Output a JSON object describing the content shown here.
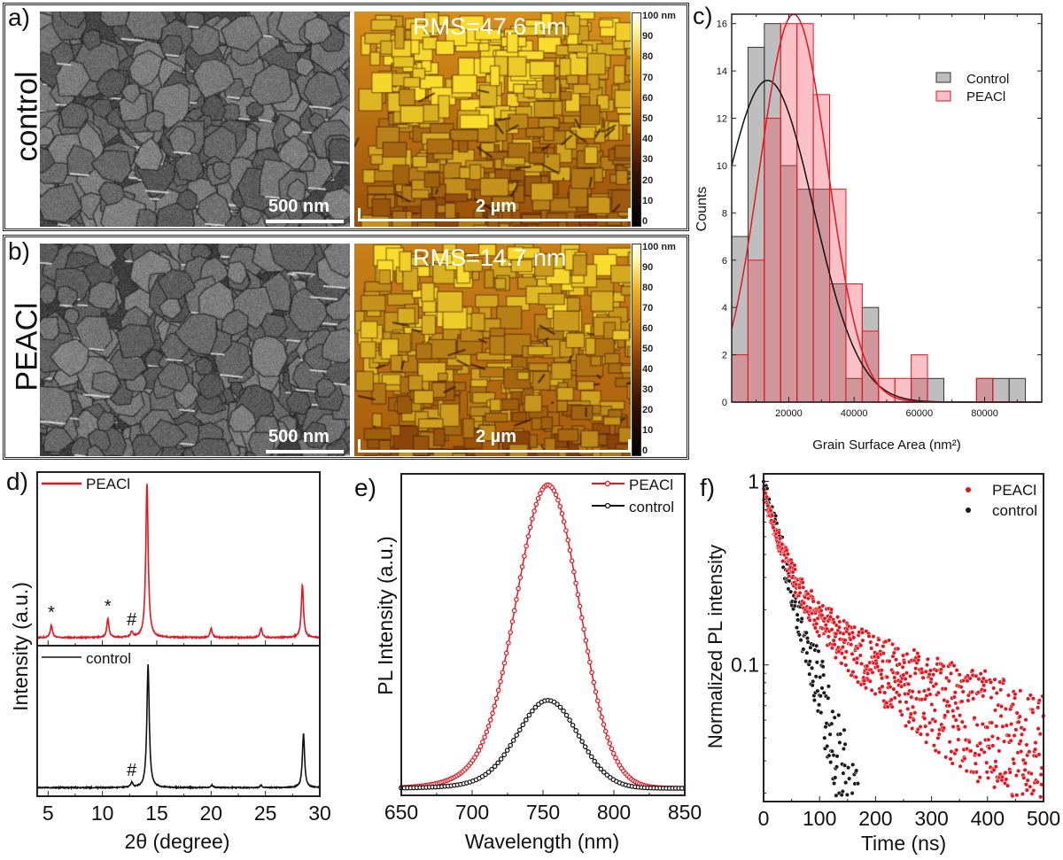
{
  "panel_a": {
    "label": "a)",
    "sample": "control",
    "sem_scalebar": "500 nm",
    "afm_rms": "RMS=47.6 nm",
    "afm_scalebar": "2 µm"
  },
  "panel_b": {
    "label": "b)",
    "sample": "PEACl",
    "sem_scalebar": "500 nm",
    "afm_rms": "RMS=14.7 nm",
    "afm_scalebar": "2 µm"
  },
  "colorbar": {
    "labels": [
      "100 nm",
      "90",
      "80",
      "70",
      "60",
      "50",
      "40",
      "30",
      "20",
      "10",
      "0"
    ]
  },
  "colors": {
    "peacl": "#e8141e",
    "control": "#111111",
    "control_hist": "#808080",
    "peacl_hist": "#f07880"
  },
  "chart_data": [
    {
      "panel": "c)",
      "type": "bar",
      "xlabel": "Grain Surface Area (nm²)",
      "ylabel": "Counts",
      "xlim": [
        2500,
        97500
      ],
      "ylim": [
        0,
        16.4
      ],
      "xticks": [
        "20000",
        "40000",
        "60000",
        "80000"
      ],
      "yticks": [
        "0",
        "2",
        "4",
        "6",
        "8",
        "10",
        "12",
        "14",
        "16"
      ],
      "bin_width": 5000,
      "bin_centers": [
        5000,
        10000,
        15000,
        20000,
        25000,
        30000,
        35000,
        40000,
        45000,
        50000,
        55000,
        60000,
        65000,
        70000,
        75000,
        80000,
        85000,
        90000
      ],
      "legend": "top-right",
      "series": [
        {
          "name": "Control",
          "values": [
            7,
            15,
            16,
            10,
            9,
            9,
            5,
            1,
            4,
            0,
            0,
            1,
            1,
            0,
            0,
            1,
            1,
            1
          ],
          "fit": {
            "type": "gaussian",
            "center": 13500,
            "sigma": 14000,
            "peak": 13.6
          }
        },
        {
          "name": "PEACl",
          "values": [
            2,
            6,
            12,
            16,
            16,
            13,
            9,
            5,
            3,
            1,
            1,
            2,
            0,
            0,
            0,
            1,
            0,
            0
          ],
          "fit": {
            "type": "gaussian",
            "center": 21500,
            "sigma": 10400,
            "peak": 16.4
          }
        }
      ]
    },
    {
      "panel": "d)",
      "type": "line",
      "xlabel": "2θ (degree)",
      "ylabel": "Intensity (a.u.)",
      "xlim": [
        4,
        30
      ],
      "xticks": [
        "5",
        "10",
        "15",
        "20",
        "25",
        "30"
      ],
      "stacked": true,
      "series": [
        {
          "name": "PEACl",
          "peaks": [
            {
              "x": 5.3,
              "h": 0.08,
              "mark": "*"
            },
            {
              "x": 10.5,
              "h": 0.12,
              "mark": "*"
            },
            {
              "x": 12.7,
              "h": 0.035,
              "mark": "#"
            },
            {
              "x": 14.1,
              "h": 1.0
            },
            {
              "x": 20.0,
              "h": 0.06
            },
            {
              "x": 24.6,
              "h": 0.06
            },
            {
              "x": 28.4,
              "h": 0.34
            }
          ]
        },
        {
          "name": "control",
          "peaks": [
            {
              "x": 12.7,
              "h": 0.04,
              "mark": "#"
            },
            {
              "x": 14.2,
              "h": 1.0
            },
            {
              "x": 20.1,
              "h": 0.02
            },
            {
              "x": 24.6,
              "h": 0.02
            },
            {
              "x": 28.5,
              "h": 0.44
            }
          ]
        }
      ]
    },
    {
      "panel": "e)",
      "type": "line",
      "xlabel": "Wavelength (nm)",
      "ylabel": "PL Intensity (a.u.)",
      "xlim": [
        650,
        850
      ],
      "ylim": [
        0,
        1.1
      ],
      "xticks": [
        "650",
        "700",
        "750",
        "800",
        "850"
      ],
      "legend": "top-right",
      "series": [
        {
          "name": "PEACl",
          "peak_nm": 754,
          "fwhm_nm": 52,
          "amplitude": 1.0
        },
        {
          "name": "control",
          "peak_nm": 754,
          "fwhm_nm": 50,
          "amplitude": 0.29
        }
      ]
    },
    {
      "panel": "f)",
      "type": "scatter",
      "xlabel": "Time (ns)",
      "ylabel": "Normalized PL intensity",
      "xlim": [
        0,
        500
      ],
      "ylim": [
        0.018,
        1.1
      ],
      "yscale": "log",
      "xticks": [
        "0",
        "100",
        "200",
        "300",
        "400",
        "500"
      ],
      "yticks": [
        "1",
        "0.1"
      ],
      "legend": "top-right",
      "series": [
        {
          "name": "PEACl",
          "decay": [
            {
              "a": 0.6,
              "tau_ns": 30
            },
            {
              "a": 0.25,
              "tau_ns": 170
            }
          ],
          "floor": 0.02
        },
        {
          "name": "control",
          "decay": [
            {
              "a": 1.0,
              "tau_ns": 38
            }
          ],
          "floor": 0.0
        }
      ]
    }
  ]
}
